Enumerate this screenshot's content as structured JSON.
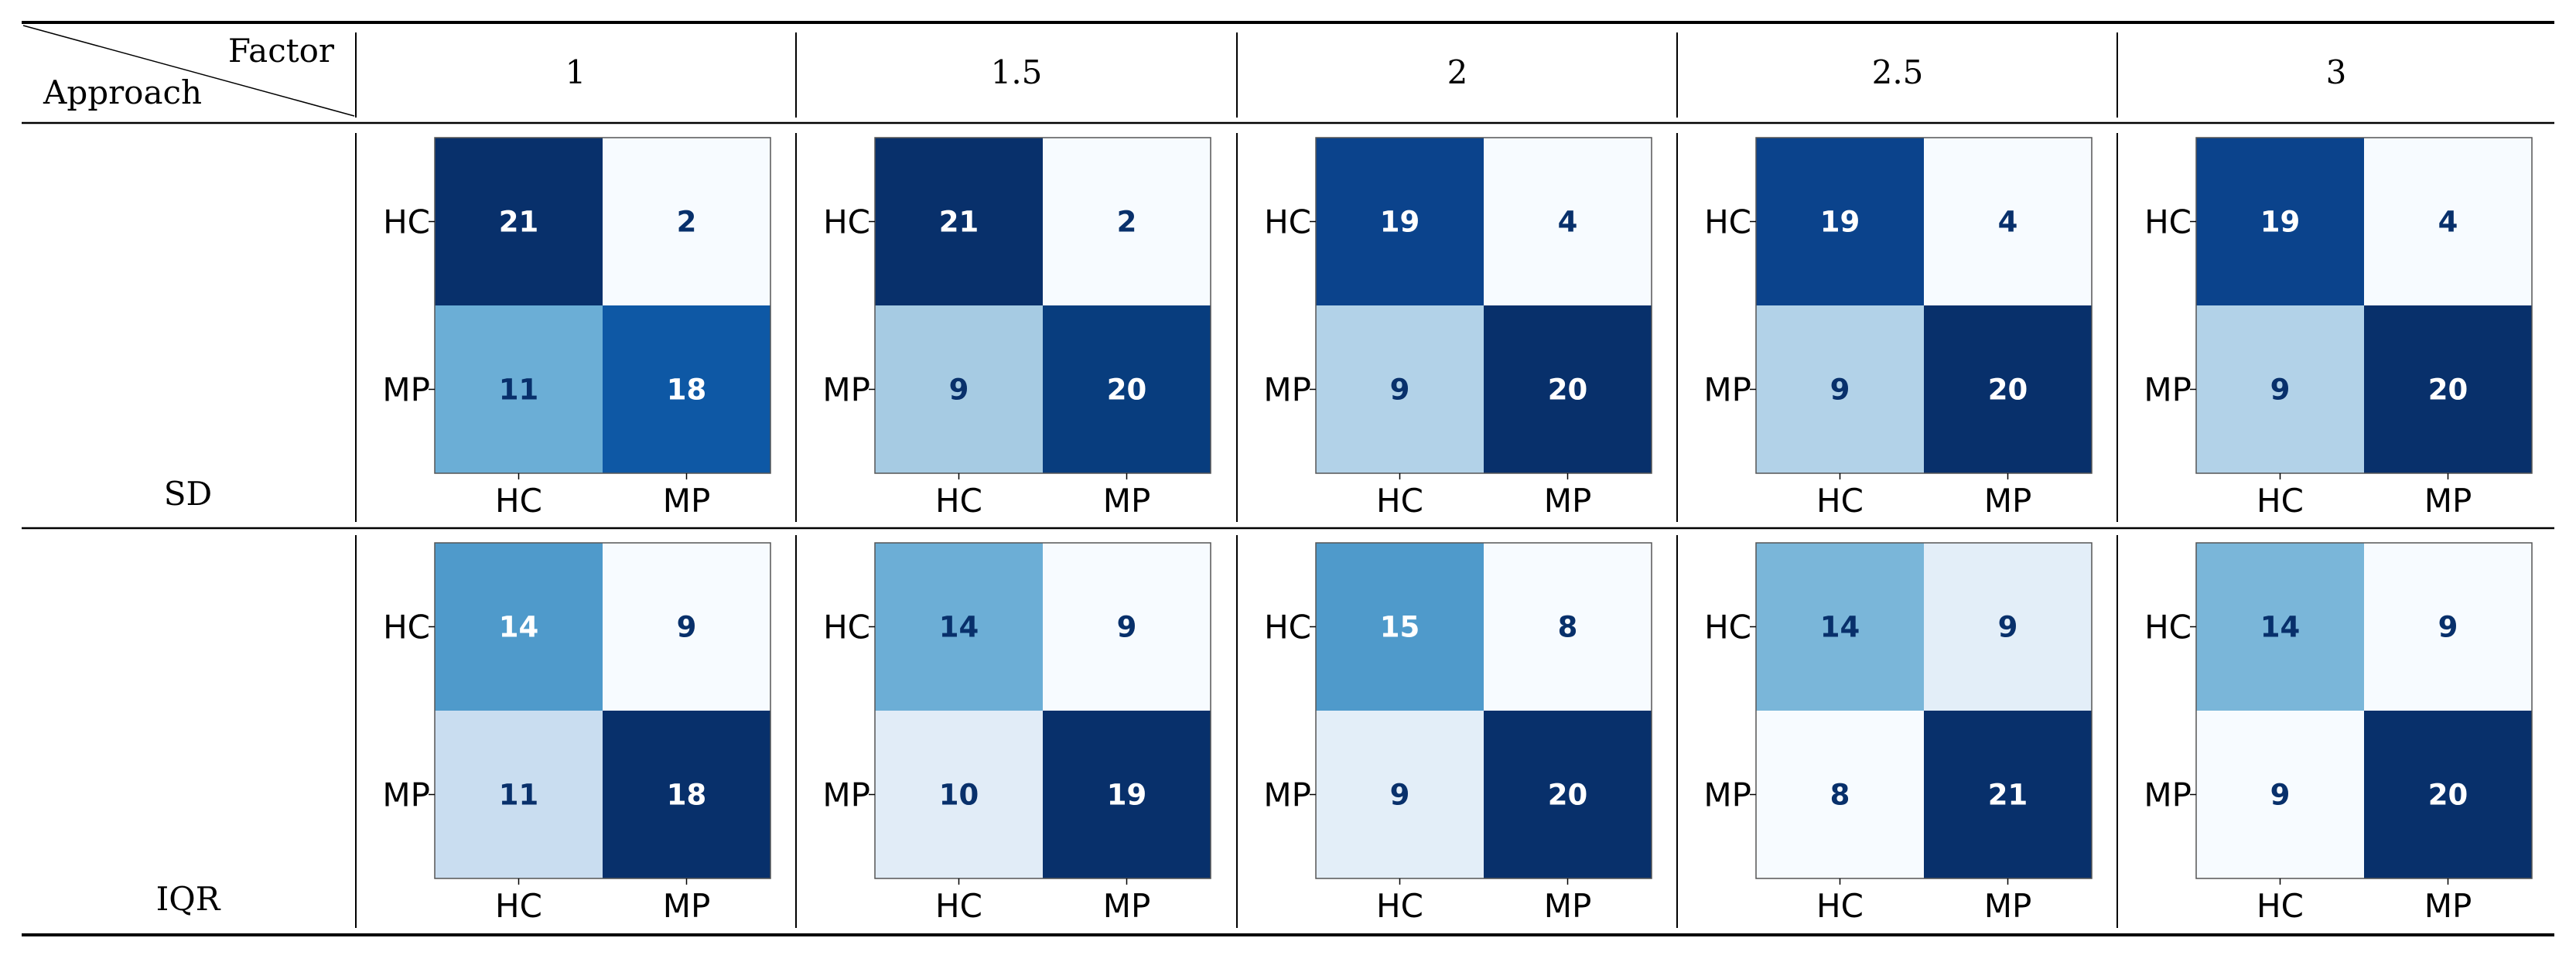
{
  "table": {
    "corner": {
      "top_label": "Factor",
      "bottom_label": "Approach"
    },
    "factors": [
      "1",
      "1.5",
      "2",
      "2.5",
      "3"
    ],
    "rows": [
      {
        "approach": "SD",
        "matrices": [
          {
            "values": [
              [
                21,
                2
              ],
              [
                11,
                18
              ]
            ],
            "colors": [
              [
                "#08306b",
                "#f7fbff"
              ],
              [
                "#6baed6",
                "#0e58a5"
              ]
            ]
          },
          {
            "values": [
              [
                21,
                2
              ],
              [
                9,
                20
              ]
            ],
            "colors": [
              [
                "#08306b",
                "#f7fbff"
              ],
              [
                "#a6cbe3",
                "#083d7e"
              ]
            ]
          },
          {
            "values": [
              [
                19,
                4
              ],
              [
                9,
                20
              ]
            ],
            "colors": [
              [
                "#0b438c",
                "#f7fbff"
              ],
              [
                "#b2d2e8",
                "#08306b"
              ]
            ]
          },
          {
            "values": [
              [
                19,
                4
              ],
              [
                9,
                20
              ]
            ],
            "colors": [
              [
                "#0b438c",
                "#f7fbff"
              ],
              [
                "#b2d2e8",
                "#08306b"
              ]
            ]
          },
          {
            "values": [
              [
                19,
                4
              ],
              [
                9,
                20
              ]
            ],
            "colors": [
              [
                "#0b438c",
                "#f7fbff"
              ],
              [
                "#b2d2e8",
                "#08306b"
              ]
            ]
          }
        ]
      },
      {
        "approach": "IQR",
        "matrices": [
          {
            "values": [
              [
                14,
                9
              ],
              [
                11,
                18
              ]
            ],
            "colors": [
              [
                "#4f9acb",
                "#f7fbff"
              ],
              [
                "#c9ddf0",
                "#08306b"
              ]
            ]
          },
          {
            "values": [
              [
                14,
                9
              ],
              [
                10,
                19
              ]
            ],
            "colors": [
              [
                "#6caed6",
                "#f7fbff"
              ],
              [
                "#e1ecf7",
                "#08306b"
              ]
            ]
          },
          {
            "values": [
              [
                15,
                8
              ],
              [
                9,
                20
              ]
            ],
            "colors": [
              [
                "#4f9acb",
                "#f7fbff"
              ],
              [
                "#e3eef8",
                "#08306b"
              ]
            ]
          },
          {
            "values": [
              [
                14,
                9
              ],
              [
                8,
                21
              ]
            ],
            "colors": [
              [
                "#7ab6d9",
                "#e3eef8"
              ],
              [
                "#f7fbff",
                "#08306b"
              ]
            ]
          },
          {
            "values": [
              [
                14,
                9
              ],
              [
                9,
                20
              ]
            ],
            "colors": [
              [
                "#7ab6d9",
                "#f7fbff"
              ],
              [
                "#f7fbff",
                "#08306b"
              ]
            ]
          }
        ]
      }
    ],
    "class_labels": [
      "HC",
      "MP"
    ]
  },
  "colors": {
    "dark_text": "#ffffff",
    "light_text": "#08306b",
    "rule": "#000000"
  }
}
